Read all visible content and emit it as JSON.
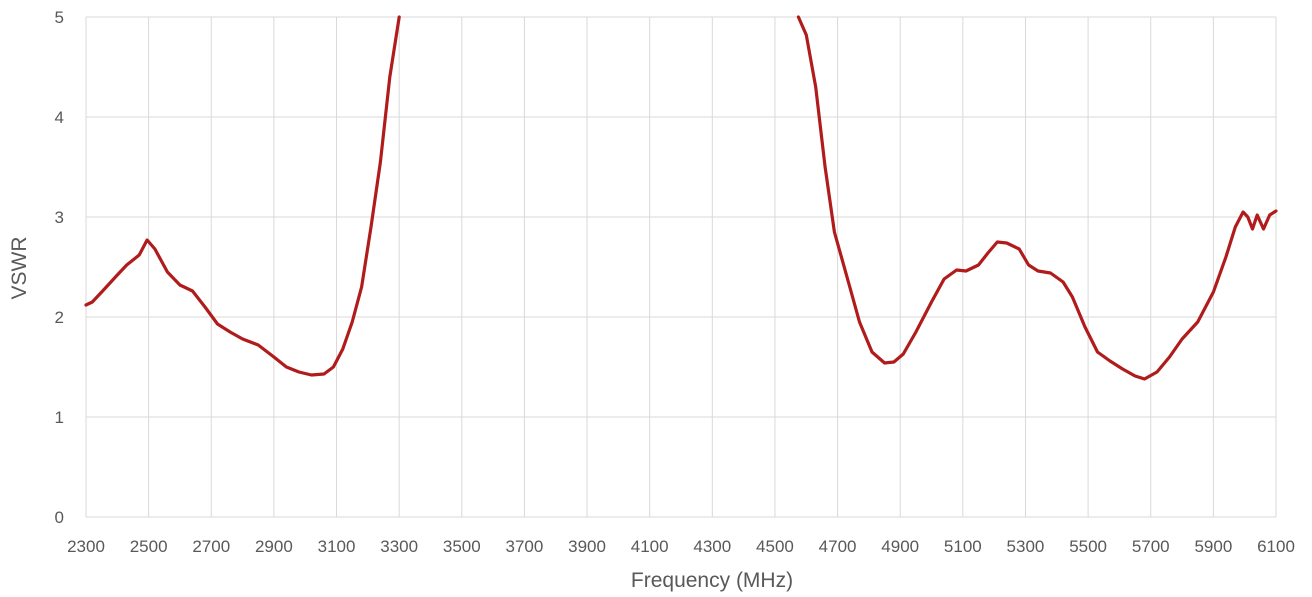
{
  "chart_data": {
    "type": "line",
    "title": "",
    "xlabel": "Frequency (MHz)",
    "ylabel": "VSWR",
    "xlim": [
      2300,
      6100
    ],
    "ylim": [
      0,
      5
    ],
    "x_ticks": [
      "2300",
      "2500",
      "2700",
      "2900",
      "3100",
      "3300",
      "3500",
      "3700",
      "3900",
      "4100",
      "4300",
      "4500",
      "4700",
      "4900",
      "5100",
      "5300",
      "5500",
      "5700",
      "5900",
      "6100"
    ],
    "y_ticks": [
      "0",
      "1",
      "2",
      "3",
      "4",
      "5"
    ],
    "grid": true,
    "colors": {
      "series": "#b01c1c",
      "grid": "#d9d9d9",
      "text": "#595959"
    },
    "series": [
      {
        "segments": [
          [
            [
              2300,
              2.12
            ],
            [
              2320,
              2.15
            ],
            [
              2350,
              2.25
            ],
            [
              2400,
              2.42
            ],
            [
              2430,
              2.52
            ],
            [
              2470,
              2.62
            ],
            [
              2495,
              2.77
            ],
            [
              2520,
              2.68
            ],
            [
              2560,
              2.45
            ],
            [
              2600,
              2.32
            ],
            [
              2640,
              2.26
            ],
            [
              2680,
              2.1
            ],
            [
              2720,
              1.93
            ],
            [
              2760,
              1.85
            ],
            [
              2800,
              1.78
            ],
            [
              2850,
              1.72
            ],
            [
              2900,
              1.6
            ],
            [
              2940,
              1.5
            ],
            [
              2980,
              1.45
            ],
            [
              3020,
              1.42
            ],
            [
              3060,
              1.43
            ],
            [
              3090,
              1.5
            ],
            [
              3120,
              1.68
            ],
            [
              3150,
              1.95
            ],
            [
              3180,
              2.3
            ],
            [
              3210,
              2.9
            ],
            [
              3240,
              3.55
            ],
            [
              3270,
              4.4
            ],
            [
              3300,
              5
            ]
          ],
          [
            [
              4575,
              5
            ],
            [
              4600,
              4.82
            ],
            [
              4630,
              4.3
            ],
            [
              4660,
              3.5
            ],
            [
              4690,
              2.85
            ],
            [
              4730,
              2.4
            ],
            [
              4770,
              1.95
            ],
            [
              4810,
              1.65
            ],
            [
              4850,
              1.54
            ],
            [
              4880,
              1.55
            ],
            [
              4910,
              1.63
            ],
            [
              4950,
              1.85
            ],
            [
              5000,
              2.15
            ],
            [
              5040,
              2.38
            ],
            [
              5080,
              2.47
            ],
            [
              5110,
              2.46
            ],
            [
              5150,
              2.52
            ],
            [
              5180,
              2.64
            ],
            [
              5210,
              2.75
            ],
            [
              5240,
              2.74
            ],
            [
              5280,
              2.68
            ],
            [
              5310,
              2.52
            ],
            [
              5340,
              2.46
            ],
            [
              5380,
              2.44
            ],
            [
              5420,
              2.35
            ],
            [
              5450,
              2.2
            ],
            [
              5490,
              1.9
            ],
            [
              5530,
              1.65
            ],
            [
              5570,
              1.56
            ],
            [
              5610,
              1.48
            ],
            [
              5650,
              1.41
            ],
            [
              5680,
              1.38
            ],
            [
              5720,
              1.45
            ],
            [
              5760,
              1.6
            ],
            [
              5800,
              1.78
            ],
            [
              5850,
              1.95
            ],
            [
              5900,
              2.25
            ],
            [
              5940,
              2.6
            ],
            [
              5970,
              2.9
            ],
            [
              5995,
              3.05
            ],
            [
              6010,
              3
            ],
            [
              6025,
              2.88
            ],
            [
              6040,
              3.02
            ],
            [
              6060,
              2.88
            ],
            [
              6080,
              3.02
            ],
            [
              6100,
              3.06
            ]
          ]
        ]
      }
    ]
  }
}
